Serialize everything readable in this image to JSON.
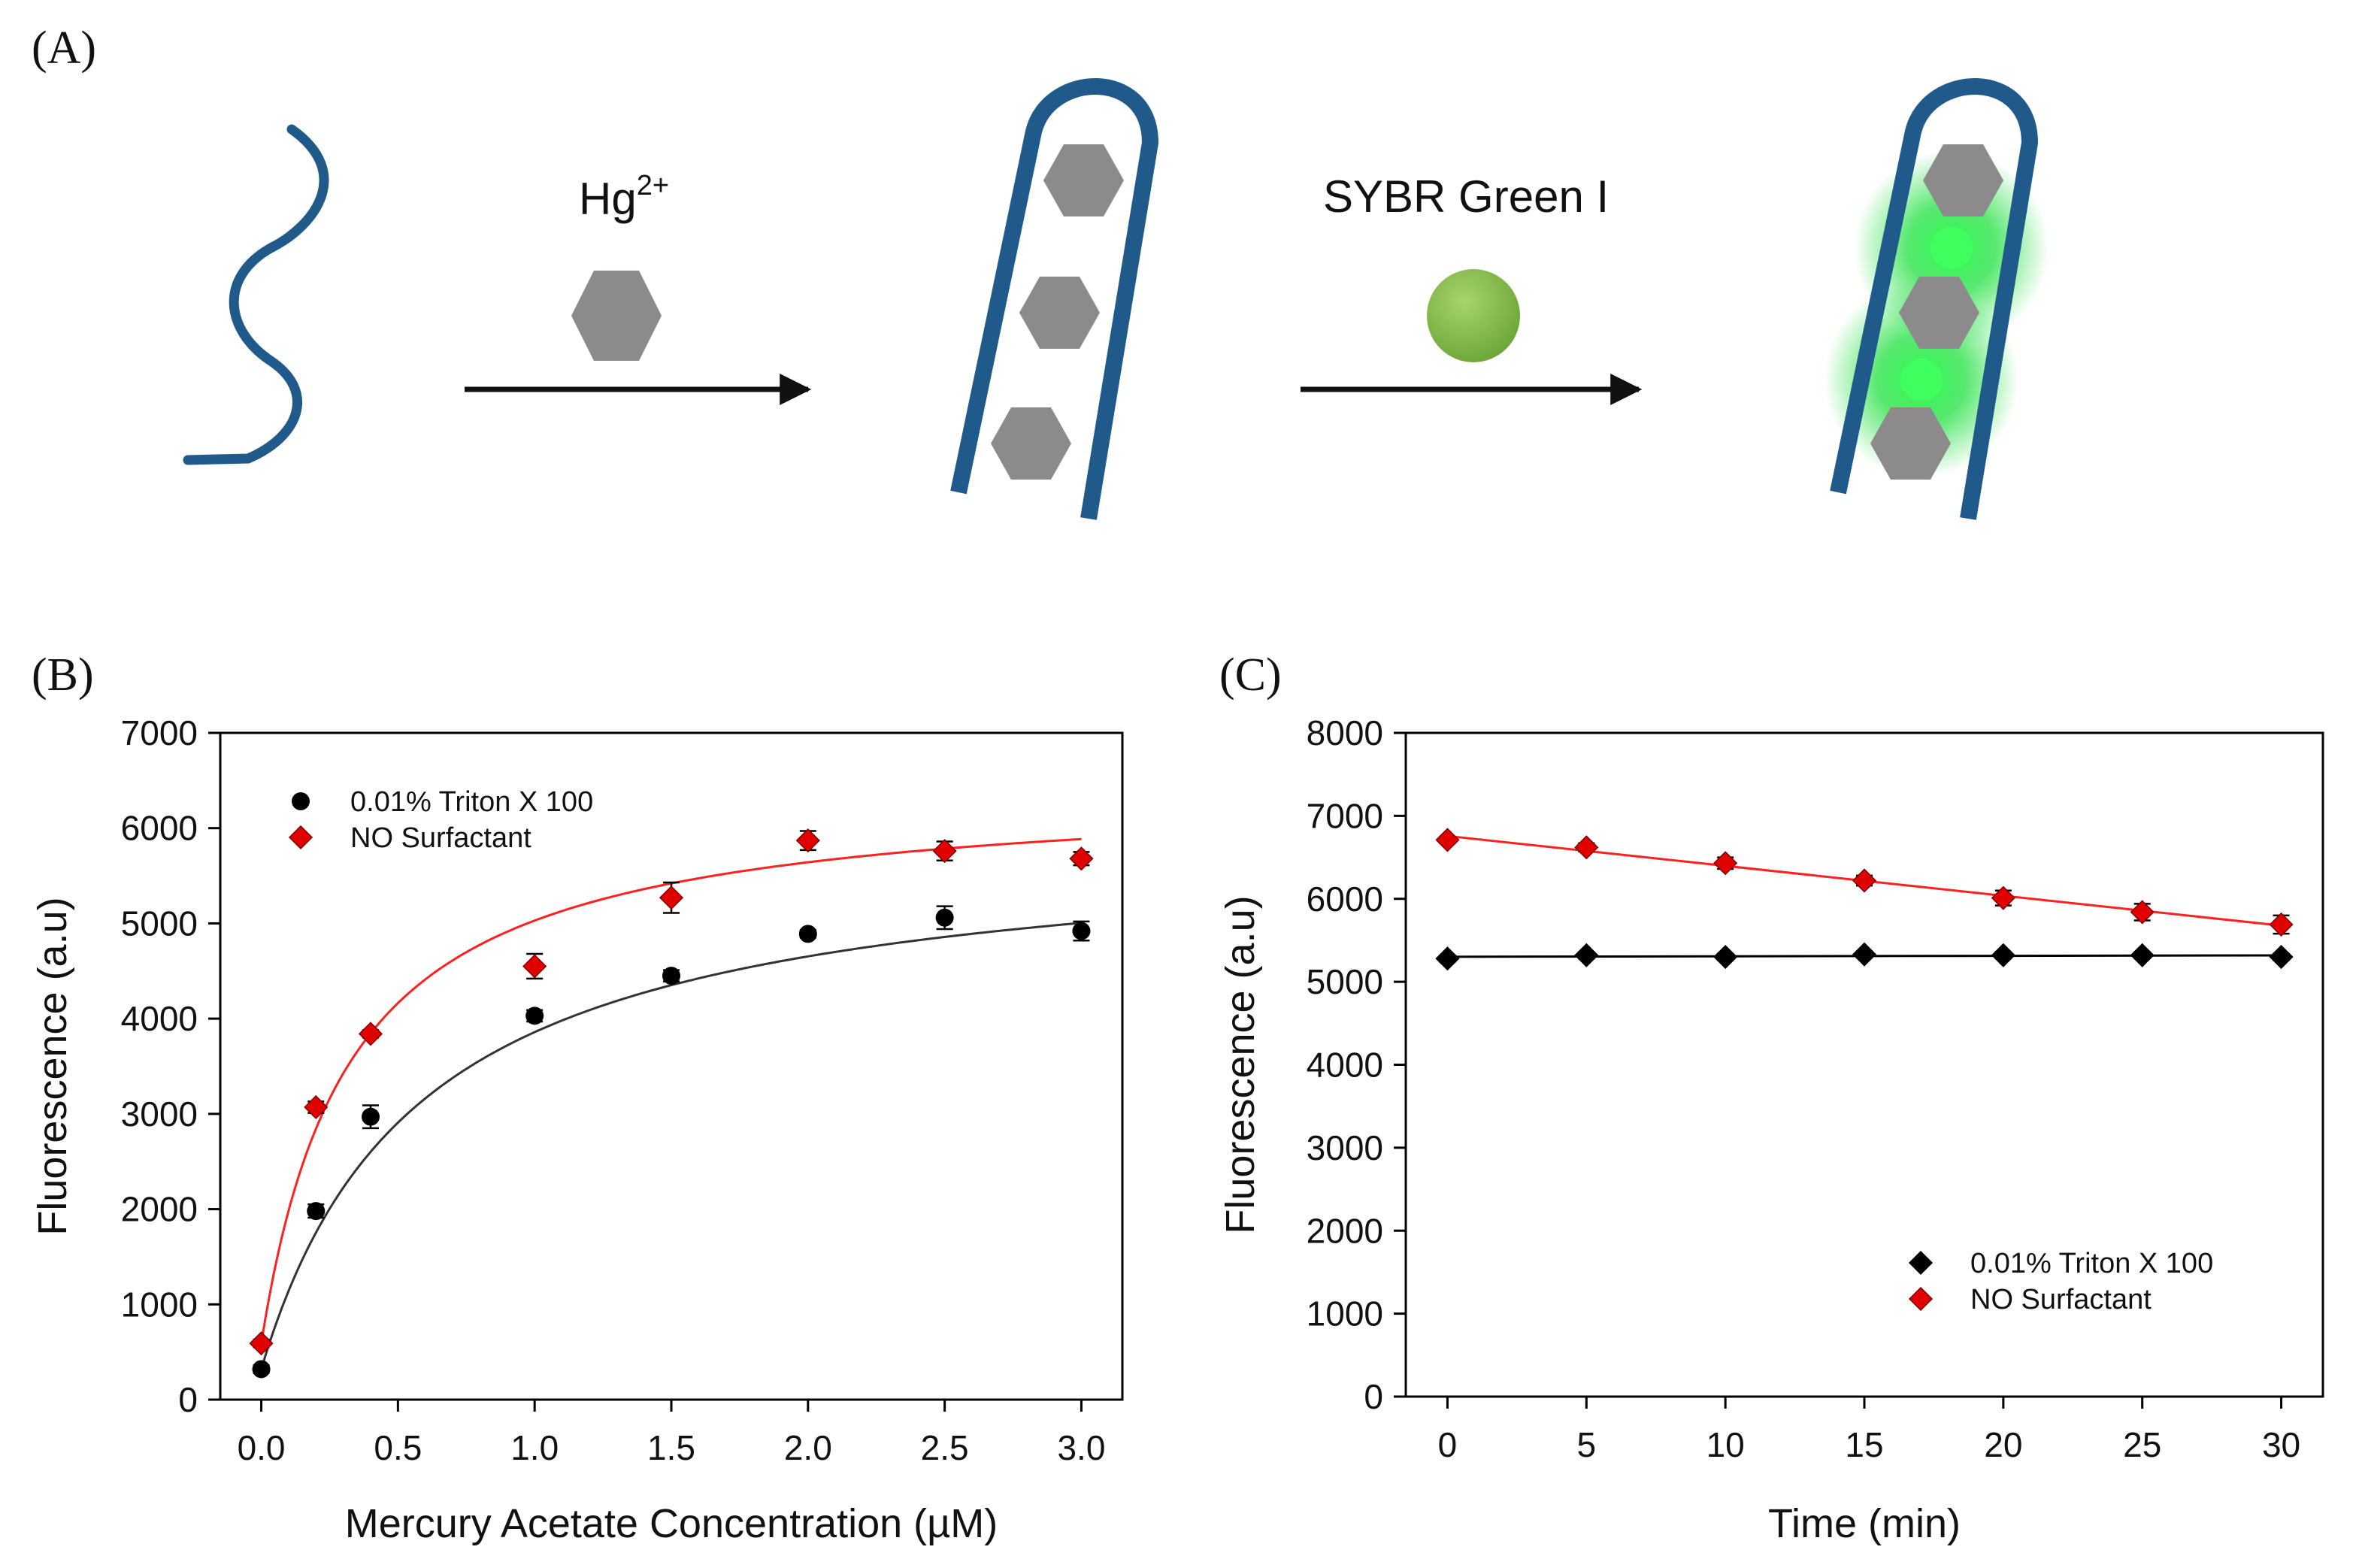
{
  "panel_labels": {
    "a": "(A)",
    "b": "(B)",
    "c": "(C)"
  },
  "scheme": {
    "step1_label": "Hg",
    "step1_superscript": "2+",
    "step2_label": "SYBR Green I",
    "colors": {
      "dna": "#1f5a8a",
      "hexagon": "#8c8a8a",
      "dye": "#8cc152",
      "glow": "#22ee44"
    }
  },
  "chart_data": [
    {
      "type": "scatter",
      "panel": "B",
      "xlabel": "Mercury Acetate Concentration (µM)",
      "ylabel": "Fluorescence (a.u)",
      "xlim": [
        -0.15,
        3.15
      ],
      "ylim": [
        0,
        7000
      ],
      "xticks": [
        "0.0",
        "0.5",
        "1.0",
        "1.5",
        "2.0",
        "2.5",
        "3.0"
      ],
      "yticks": [
        "0",
        "1000",
        "2000",
        "3000",
        "4000",
        "5000",
        "6000",
        "7000"
      ],
      "legend_position": "top-left",
      "fit": "saturation",
      "series": [
        {
          "name": "0.01% Triton X 100",
          "marker": "circle",
          "color": "#000000",
          "line_color": "#333333",
          "x": [
            0,
            0.2,
            0.4,
            1.0,
            1.5,
            2.0,
            2.5,
            3.0
          ],
          "y": [
            320,
            1980,
            2970,
            4030,
            4450,
            4890,
            5060,
            4920
          ],
          "err": [
            40,
            70,
            120,
            60,
            60,
            40,
            120,
            100
          ],
          "fit_params": {
            "y0": 320,
            "a": 5590,
            "b": 0.58
          }
        },
        {
          "name": "NO Surfactant",
          "marker": "diamond",
          "color": "#e00000",
          "line_color": "#ff2020",
          "x": [
            0,
            0.2,
            0.4,
            1.0,
            1.5,
            2.0,
            2.5,
            3.0
          ],
          "y": [
            590,
            3070,
            3840,
            4550,
            5270,
            5870,
            5760,
            5680
          ],
          "err": [
            40,
            60,
            40,
            130,
            160,
            100,
            100,
            70
          ],
          "fit_params": {
            "y0": 590,
            "a": 5860,
            "b": 0.32
          }
        }
      ]
    },
    {
      "type": "line",
      "panel": "C",
      "xlabel": "Time (min)",
      "ylabel": "Fluorescence (a.u)",
      "xlim": [
        -1.5,
        31.5
      ],
      "ylim": [
        0,
        8000
      ],
      "xticks": [
        "0",
        "5",
        "10",
        "15",
        "20",
        "25",
        "30"
      ],
      "yticks": [
        "0",
        "1000",
        "2000",
        "3000",
        "4000",
        "5000",
        "6000",
        "7000",
        "8000"
      ],
      "legend_position": "bottom-right",
      "fit": "linear",
      "series": [
        {
          "name": "0.01% Triton X 100",
          "marker": "diamond",
          "color": "#000000",
          "line_color": "#000000",
          "x": [
            0,
            5,
            10,
            15,
            20,
            25,
            30
          ],
          "y": [
            5280,
            5320,
            5300,
            5330,
            5320,
            5320,
            5300
          ],
          "err": [
            40,
            40,
            40,
            40,
            40,
            40,
            40
          ]
        },
        {
          "name": "NO Surfactant",
          "marker": "diamond",
          "color": "#e00000",
          "line_color": "#ff2020",
          "x": [
            0,
            5,
            10,
            15,
            20,
            25,
            30
          ],
          "y": [
            6710,
            6620,
            6430,
            6220,
            6010,
            5840,
            5690
          ],
          "err": [
            40,
            50,
            70,
            60,
            90,
            100,
            110
          ]
        }
      ]
    }
  ]
}
